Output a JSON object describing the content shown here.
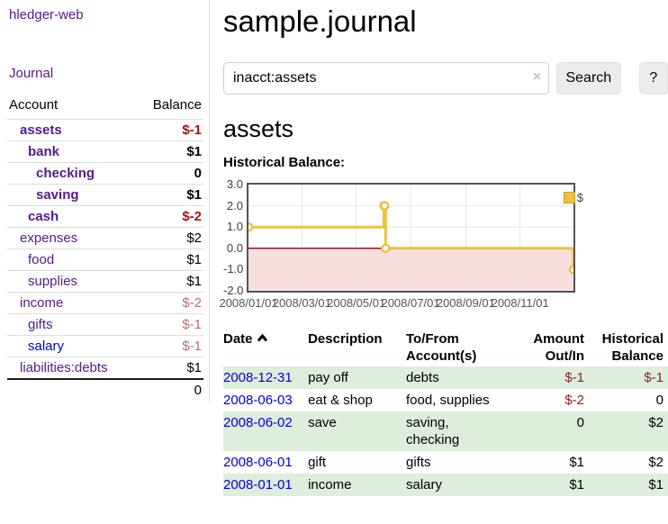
{
  "app": {
    "brand": "hledger-web"
  },
  "colors": {
    "link_purple": "#551A8B",
    "link_blue": "#0000e0",
    "negative_strong": "#a31313",
    "negative_dim": "#bd6d6d",
    "negative_table": "#8f1f1f",
    "row_green": "#ddeedd",
    "chart_line": "#edc240",
    "chart_zero_line": "#871919",
    "chart_negative_fill": "#f9dede",
    "chart_grid": "#e6e6e6",
    "chart_border": "#545454"
  },
  "sidebar": {
    "nav_journal": "Journal",
    "accounts": {
      "headers": [
        "Account",
        "Balance"
      ],
      "rows": [
        {
          "name": "assets",
          "depth": 1,
          "bold": true,
          "blue": false,
          "balance": "$-1",
          "balance_class": "neg-strong"
        },
        {
          "name": "bank",
          "depth": 2,
          "bold": true,
          "blue": false,
          "balance": "$1",
          "balance_class": "bold"
        },
        {
          "name": "checking",
          "depth": 3,
          "bold": true,
          "blue": false,
          "balance": "0",
          "balance_class": "bold"
        },
        {
          "name": "saving",
          "depth": 3,
          "bold": true,
          "blue": false,
          "balance": "$1",
          "balance_class": "bold"
        },
        {
          "name": "cash",
          "depth": 2,
          "bold": true,
          "blue": false,
          "balance": "$-2",
          "balance_class": "neg-strong"
        },
        {
          "name": "expenses",
          "depth": 1,
          "bold": false,
          "blue": false,
          "balance": "$2",
          "balance_class": ""
        },
        {
          "name": "food",
          "depth": 2,
          "bold": false,
          "blue": false,
          "balance": "$1",
          "balance_class": ""
        },
        {
          "name": "supplies",
          "depth": 2,
          "bold": false,
          "blue": false,
          "balance": "$1",
          "balance_class": ""
        },
        {
          "name": "income",
          "depth": 1,
          "bold": false,
          "blue": false,
          "balance": "$-2",
          "balance_class": "neg-dim"
        },
        {
          "name": "gifts",
          "depth": 2,
          "bold": false,
          "blue": false,
          "balance": "$-1",
          "balance_class": "neg-dim"
        },
        {
          "name": "salary",
          "depth": 2,
          "bold": false,
          "blue": true,
          "balance": "$-1",
          "balance_class": "neg-dim"
        },
        {
          "name": "liabilities:debts",
          "depth": 1,
          "bold": false,
          "blue": false,
          "balance": "$1",
          "balance_class": ""
        }
      ],
      "total": "0"
    }
  },
  "main": {
    "title": "sample.journal",
    "search": {
      "value": "inacct:assets",
      "clear_icon": "×",
      "search_label": "Search",
      "help_label": "?"
    },
    "account_heading": "assets",
    "chart_label": "Historical Balance:"
  },
  "chart_data": {
    "type": "line",
    "title": "Historical Balance:",
    "step": true,
    "series": [
      {
        "name": "$",
        "color": "#edc240",
        "points": [
          [
            "2008-01-01",
            1
          ],
          [
            "2008-06-01",
            2
          ],
          [
            "2008-06-02",
            2
          ],
          [
            "2008-06-03",
            0
          ],
          [
            "2008-12-31",
            -1
          ]
        ]
      }
    ],
    "x_range": [
      "2008-01-01",
      "2008-12-31"
    ],
    "xticks": [
      "2008/01/01",
      "2008/03/01",
      "2008/05/01",
      "2008/07/01",
      "2008/09/01",
      "2008/11/01"
    ],
    "yticks": [
      3,
      2,
      1,
      0,
      -1,
      -2
    ],
    "ylim": [
      -2,
      3
    ],
    "legend_position": "top-right",
    "negative_region_shaded": true,
    "grid": true
  },
  "transactions": {
    "headers": {
      "date": "Date",
      "description": "Description",
      "accounts": "To/From Account(s)",
      "amount": "Amount Out/In",
      "balance": "Historical Balance"
    },
    "sort": "date-ascending",
    "rows": [
      {
        "date": "2008-12-31",
        "description": "pay off",
        "accounts": "debts",
        "amount": "$-1",
        "amount_negative": true,
        "balance": "$-1",
        "balance_negative": true
      },
      {
        "date": "2008-06-03",
        "description": "eat & shop",
        "accounts": "food, supplies",
        "amount": "$-2",
        "amount_negative": true,
        "balance": "0",
        "balance_negative": false
      },
      {
        "date": "2008-06-02",
        "description": "save",
        "accounts": "saving, checking",
        "amount": "0",
        "amount_negative": false,
        "balance": "$2",
        "balance_negative": false
      },
      {
        "date": "2008-06-01",
        "description": "gift",
        "accounts": "gifts",
        "amount": "$1",
        "amount_negative": false,
        "balance": "$2",
        "balance_negative": false
      },
      {
        "date": "2008-01-01",
        "description": "income",
        "accounts": "salary",
        "amount": "$1",
        "amount_negative": false,
        "balance": "$1",
        "balance_negative": false
      }
    ]
  }
}
